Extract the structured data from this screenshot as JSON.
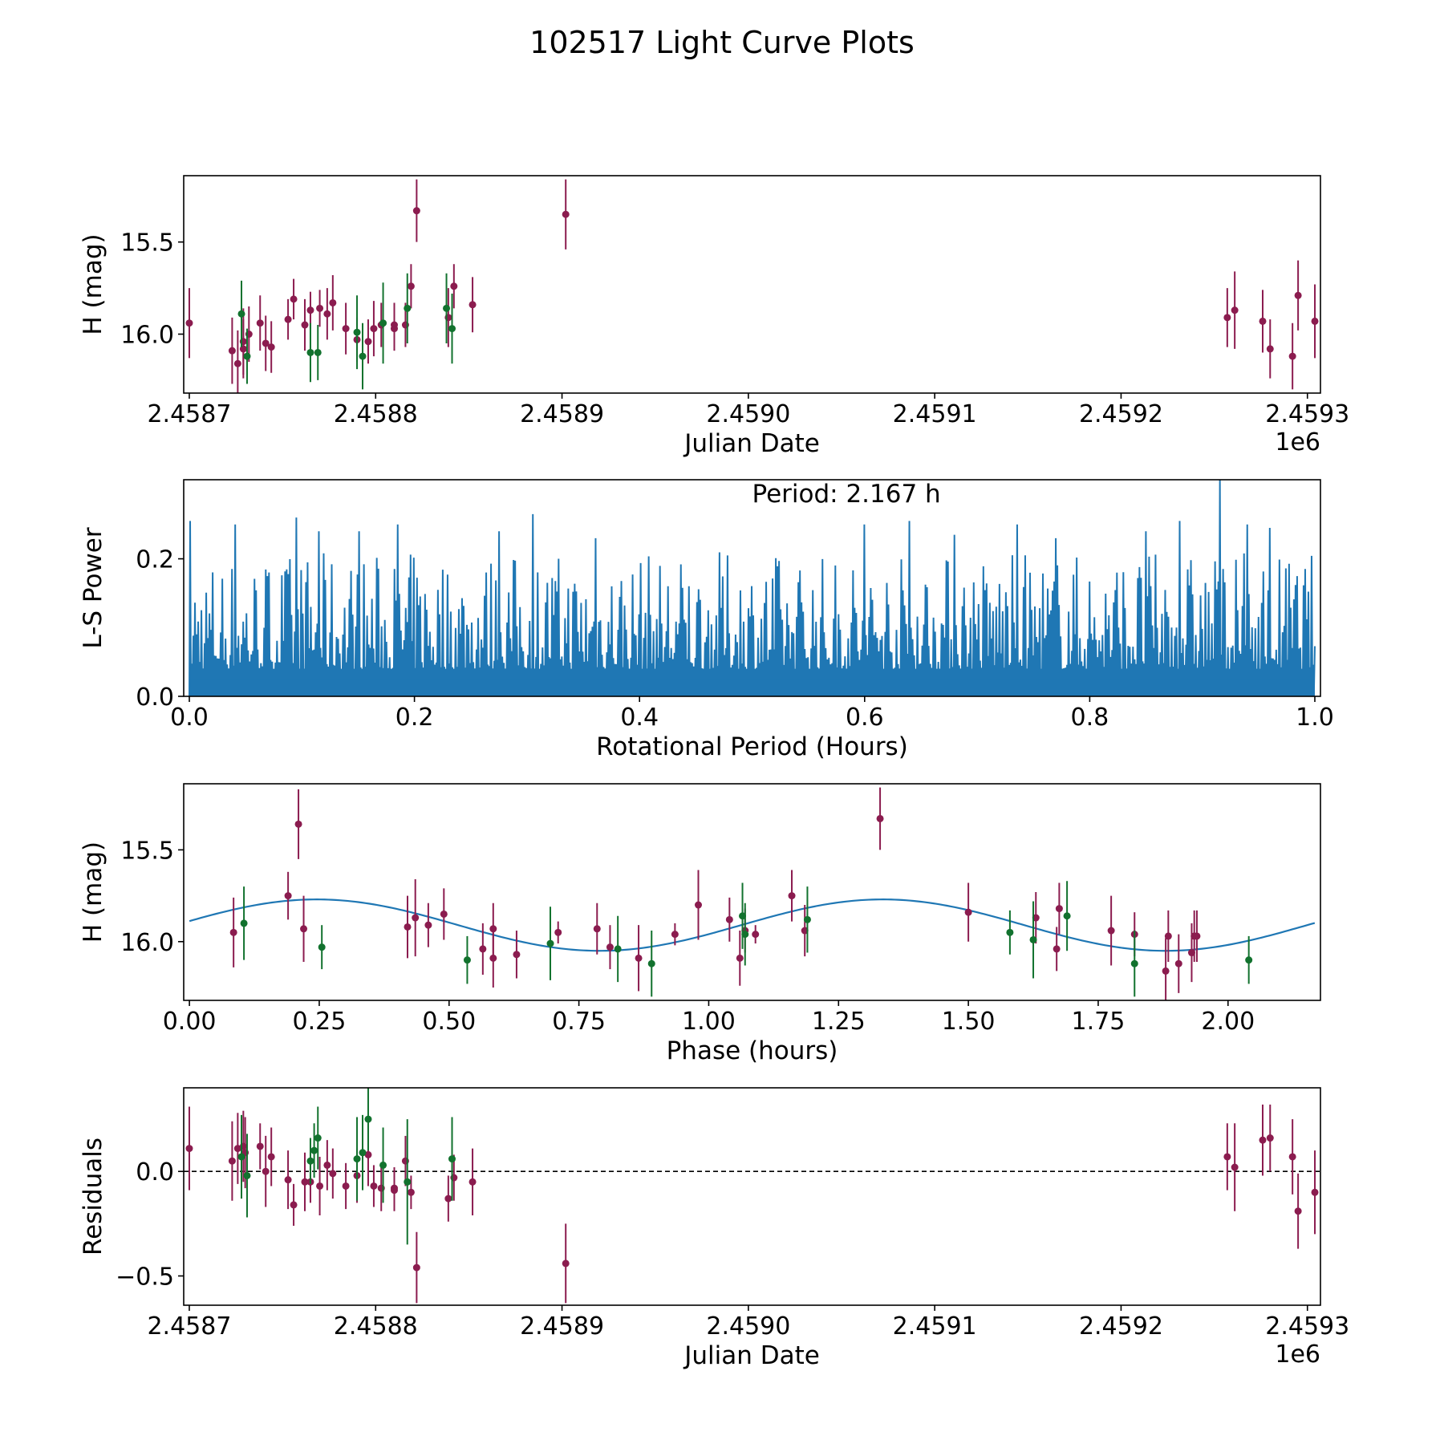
{
  "figure": {
    "title": "102517 Light Curve Plots"
  },
  "colors": {
    "red": "#8b1c4f",
    "green": "#12722e",
    "blue": "#1f77b4",
    "axis": "#000000"
  },
  "chart_data": [
    {
      "id": "lightcurve",
      "type": "scatter",
      "xlabel": "Julian Date",
      "ylabel": "H (mag)",
      "xlim": [
        2458697,
        2459307
      ],
      "ylim": [
        16.32,
        15.14
      ],
      "xticks": [
        2458700,
        2458800,
        2458900,
        2459000,
        2459100,
        2459200,
        2459300
      ],
      "xticklabels": [
        "2.4587",
        "2.4588",
        "2.4589",
        "2.4590",
        "2.4591",
        "2.4592",
        "2.4593"
      ],
      "yticks": [
        16.0,
        15.5
      ],
      "yticklabels": [
        "16.0",
        "15.5"
      ],
      "offset_label": "1e6",
      "series": [
        {
          "name": "red",
          "color": "#8b1c4f",
          "points": [
            [
              2458700,
              15.94,
              0.19
            ],
            [
              2458723,
              16.09,
              0.18
            ],
            [
              2458726,
              16.16,
              0.18
            ],
            [
              2458729,
              16.08,
              0.16
            ],
            [
              2458729,
              16.04,
              0.18
            ],
            [
              2458732,
              16.0,
              0.15
            ],
            [
              2458738,
              15.94,
              0.15
            ],
            [
              2458741,
              16.05,
              0.15
            ],
            [
              2458744,
              16.07,
              0.14
            ],
            [
              2458753,
              15.92,
              0.11
            ],
            [
              2458756,
              15.81,
              0.11
            ],
            [
              2458762,
              15.95,
              0.14
            ],
            [
              2458765,
              15.87,
              0.1
            ],
            [
              2458770,
              15.86,
              0.1
            ],
            [
              2458774,
              15.89,
              0.14
            ],
            [
              2458777,
              15.83,
              0.15
            ],
            [
              2458784,
              15.97,
              0.14
            ],
            [
              2458790,
              16.03,
              0.12
            ],
            [
              2458796,
              16.04,
              0.12
            ],
            [
              2458799,
              15.97,
              0.15
            ],
            [
              2458803,
              15.95,
              0.12
            ],
            [
              2458810,
              15.97,
              0.12
            ],
            [
              2458810,
              15.95,
              0.12
            ],
            [
              2458816,
              15.95,
              0.12
            ],
            [
              2458819,
              15.74,
              0.12
            ],
            [
              2458822,
              15.33,
              0.17
            ],
            [
              2458839,
              15.91,
              0.16
            ],
            [
              2458842,
              15.74,
              0.12
            ],
            [
              2458852,
              15.84,
              0.15
            ],
            [
              2458902,
              15.35,
              0.19
            ],
            [
              2459257,
              15.91,
              0.16
            ],
            [
              2459261,
              15.87,
              0.21
            ],
            [
              2459276,
              15.93,
              0.17
            ],
            [
              2459280,
              16.08,
              0.16
            ],
            [
              2459292,
              16.12,
              0.18
            ],
            [
              2459295,
              15.79,
              0.19
            ],
            [
              2459304,
              15.93,
              0.2
            ]
          ]
        },
        {
          "name": "green",
          "color": "#12722e",
          "points": [
            [
              2458728,
              15.89,
              0.18
            ],
            [
              2458731,
              16.12,
              0.15
            ],
            [
              2458765,
              16.1,
              0.16
            ],
            [
              2458769,
              16.1,
              0.15
            ],
            [
              2458790,
              15.99,
              0.2
            ],
            [
              2458793,
              16.12,
              0.18
            ],
            [
              2458804,
              15.94,
              0.22
            ],
            [
              2458817,
              15.86,
              0.19
            ],
            [
              2458838,
              15.86,
              0.19
            ],
            [
              2458841,
              15.97,
              0.19
            ]
          ]
        }
      ]
    },
    {
      "id": "periodogram",
      "type": "line",
      "xlabel": "Rotational Period (Hours)",
      "ylabel": "L-S Power",
      "xlim": [
        -0.005,
        1.005
      ],
      "ylim": [
        0,
        0.315
      ],
      "xticks": [
        0.0,
        0.2,
        0.4,
        0.6,
        0.8,
        1.0
      ],
      "xticklabels": [
        "0.0",
        "0.2",
        "0.4",
        "0.6",
        "0.8",
        "1.0"
      ],
      "yticks": [
        0.0,
        0.2
      ],
      "yticklabels": [
        "0.0",
        "0.2"
      ],
      "annotation": "Period: 2.167 h",
      "color": "#1f77b4",
      "x_range": [
        0.0,
        1.0
      ],
      "sample_count": 1400,
      "typical_peak": 0.17,
      "peaks": [
        [
          0.0,
          0.255
        ],
        [
          0.04,
          0.25
        ],
        [
          0.095,
          0.26
        ],
        [
          0.115,
          0.24
        ],
        [
          0.15,
          0.24
        ],
        [
          0.185,
          0.25
        ],
        [
          0.275,
          0.24
        ],
        [
          0.305,
          0.265
        ],
        [
          0.36,
          0.23
        ],
        [
          0.6,
          0.25
        ],
        [
          0.64,
          0.255
        ],
        [
          0.68,
          0.235
        ],
        [
          0.735,
          0.25
        ],
        [
          0.77,
          0.23
        ],
        [
          0.85,
          0.24
        ],
        [
          0.88,
          0.255
        ],
        [
          0.915,
          0.315
        ],
        [
          0.94,
          0.25
        ],
        [
          0.96,
          0.245
        ]
      ]
    },
    {
      "id": "phase",
      "type": "scatter",
      "xlabel": "Phase (hours)",
      "ylabel": "H (mag)",
      "xlim": [
        -0.011,
        2.178
      ],
      "ylim": [
        16.32,
        15.14
      ],
      "xticks": [
        0.0,
        0.25,
        0.5,
        0.75,
        1.0,
        1.25,
        1.5,
        1.75,
        2.0
      ],
      "xticklabels": [
        "0.00",
        "0.25",
        "0.50",
        "0.75",
        "1.00",
        "1.25",
        "1.50",
        "1.75",
        "2.00"
      ],
      "yticks": [
        16.0,
        15.5
      ],
      "yticklabels": [
        "16.0",
        "15.5"
      ],
      "model": {
        "mean": 15.91,
        "amplitude": 0.14,
        "period": 1.09,
        "phase_of_max": 0.79,
        "x_range": [
          0.0,
          2.167
        ],
        "color": "#1f77b4"
      },
      "series": [
        {
          "name": "red",
          "color": "#8b1c4f",
          "points": [
            [
              0.085,
              15.95,
              0.19
            ],
            [
              0.19,
              15.75,
              0.13
            ],
            [
              0.21,
              15.36,
              0.19
            ],
            [
              0.22,
              15.93,
              0.18
            ],
            [
              0.42,
              15.92,
              0.17
            ],
            [
              0.435,
              15.87,
              0.21
            ],
            [
              0.46,
              15.91,
              0.12
            ],
            [
              0.49,
              15.85,
              0.14
            ],
            [
              0.565,
              16.04,
              0.14
            ],
            [
              0.585,
              15.93,
              0.14
            ],
            [
              0.585,
              16.09,
              0.16
            ],
            [
              0.63,
              16.07,
              0.13
            ],
            [
              0.71,
              15.95,
              0.06
            ],
            [
              0.785,
              15.93,
              0.14
            ],
            [
              0.81,
              16.03,
              0.12
            ],
            [
              0.865,
              16.09,
              0.18
            ],
            [
              0.935,
              15.96,
              0.06
            ],
            [
              0.98,
              15.8,
              0.19
            ],
            [
              1.04,
              15.88,
              0.12
            ],
            [
              1.06,
              16.09,
              0.15
            ],
            [
              1.07,
              15.94,
              0.12
            ],
            [
              1.09,
              15.96,
              0.05
            ],
            [
              1.16,
              15.75,
              0.14
            ],
            [
              1.185,
              15.94,
              0.14
            ],
            [
              1.33,
              15.33,
              0.17
            ],
            [
              1.5,
              15.84,
              0.16
            ],
            [
              1.63,
              15.87,
              0.14
            ],
            [
              1.67,
              16.04,
              0.12
            ],
            [
              1.675,
              15.82,
              0.14
            ],
            [
              1.775,
              15.94,
              0.19
            ],
            [
              1.82,
              15.96,
              0.12
            ],
            [
              1.88,
              16.16,
              0.18
            ],
            [
              1.885,
              15.97,
              0.14
            ],
            [
              1.905,
              16.12,
              0.16
            ],
            [
              1.93,
              16.06,
              0.16
            ],
            [
              1.935,
              15.97,
              0.14
            ],
            [
              1.94,
              15.97,
              0.14
            ]
          ]
        },
        {
          "name": "green",
          "color": "#12722e",
          "points": [
            [
              0.105,
              15.9,
              0.2
            ],
            [
              0.255,
              16.03,
              0.12
            ],
            [
              0.535,
              16.1,
              0.13
            ],
            [
              0.695,
              16.01,
              0.2
            ],
            [
              0.825,
              16.04,
              0.18
            ],
            [
              0.89,
              16.12,
              0.18
            ],
            [
              1.065,
              15.86,
              0.18
            ],
            [
              1.07,
              15.96,
              0.17
            ],
            [
              1.19,
              15.88,
              0.18
            ],
            [
              1.58,
              15.95,
              0.12
            ],
            [
              1.625,
              15.99,
              0.21
            ],
            [
              1.69,
              15.86,
              0.19
            ],
            [
              1.82,
              16.12,
              0.18
            ],
            [
              2.04,
              16.1,
              0.13
            ]
          ]
        }
      ]
    },
    {
      "id": "residuals",
      "type": "scatter",
      "xlabel": "Julian Date",
      "ylabel": "Residuals",
      "xlim": [
        2458697,
        2459307
      ],
      "ylim": [
        -0.64,
        0.4
      ],
      "xticks": [
        2458700,
        2458800,
        2458900,
        2459000,
        2459100,
        2459200,
        2459300
      ],
      "xticklabels": [
        "2.4587",
        "2.4588",
        "2.4589",
        "2.4590",
        "2.4591",
        "2.4592",
        "2.4593"
      ],
      "yticks": [
        0.0,
        -0.5
      ],
      "yticklabels": [
        "0.0",
        "−0.5"
      ],
      "offset_label": "1e6",
      "zero_line": 0.0,
      "series": [
        {
          "name": "red",
          "color": "#8b1c4f",
          "points": [
            [
              2458700,
              0.11,
              0.2
            ],
            [
              2458723,
              0.05,
              0.19
            ],
            [
              2458726,
              0.11,
              0.17
            ],
            [
              2458729,
              0.12,
              0.17
            ],
            [
              2458730,
              0.09,
              0.17
            ],
            [
              2458738,
              0.12,
              0.11
            ],
            [
              2458741,
              0.0,
              0.17
            ],
            [
              2458744,
              0.07,
              0.14
            ],
            [
              2458753,
              -0.04,
              0.14
            ],
            [
              2458756,
              -0.16,
              0.1
            ],
            [
              2458762,
              -0.05,
              0.14
            ],
            [
              2458765,
              -0.05,
              0.1
            ],
            [
              2458770,
              -0.07,
              0.14
            ],
            [
              2458774,
              0.03,
              0.12
            ],
            [
              2458777,
              -0.01,
              0.12
            ],
            [
              2458784,
              -0.07,
              0.11
            ],
            [
              2458790,
              -0.02,
              0.13
            ],
            [
              2458796,
              0.08,
              0.15
            ],
            [
              2458799,
              -0.07,
              0.1
            ],
            [
              2458803,
              -0.08,
              0.11
            ],
            [
              2458810,
              -0.08,
              0.1
            ],
            [
              2458810,
              -0.09,
              0.1
            ],
            [
              2458816,
              0.05,
              0.12
            ],
            [
              2458819,
              -0.1,
              0.08
            ],
            [
              2458822,
              -0.46,
              0.17
            ],
            [
              2458839,
              -0.13,
              0.11
            ],
            [
              2458842,
              -0.03,
              0.11
            ],
            [
              2458852,
              -0.05,
              0.16
            ],
            [
              2458902,
              -0.44,
              0.19
            ],
            [
              2459257,
              0.07,
              0.16
            ],
            [
              2459261,
              0.02,
              0.21
            ],
            [
              2459276,
              0.15,
              0.17
            ],
            [
              2459280,
              0.16,
              0.16
            ],
            [
              2459292,
              0.07,
              0.18
            ],
            [
              2459295,
              -0.19,
              0.18
            ],
            [
              2459304,
              -0.1,
              0.2
            ]
          ]
        },
        {
          "name": "green",
          "color": "#12722e",
          "points": [
            [
              2458728,
              0.07,
              0.2
            ],
            [
              2458731,
              -0.02,
              0.2
            ],
            [
              2458765,
              0.05,
              0.11
            ],
            [
              2458767,
              0.1,
              0.13
            ],
            [
              2458769,
              0.16,
              0.15
            ],
            [
              2458790,
              0.06,
              0.2
            ],
            [
              2458793,
              0.09,
              0.18
            ],
            [
              2458796,
              0.25,
              0.15
            ],
            [
              2458804,
              0.03,
              0.18
            ],
            [
              2458817,
              -0.05,
              0.3
            ],
            [
              2458841,
              0.06,
              0.2
            ]
          ]
        }
      ]
    }
  ]
}
